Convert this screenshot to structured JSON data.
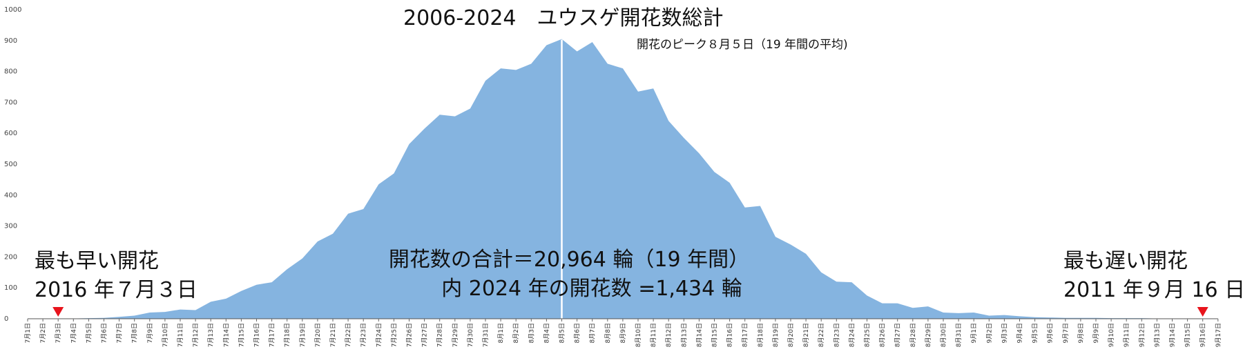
{
  "chart_data": {
    "type": "area",
    "title": "2006-2024　ユウスゲ開花数総計",
    "peak_note": "開花のピーク８月５日（19 年間の平均)",
    "ylim": [
      0,
      1000
    ],
    "yticks": [
      0,
      100,
      200,
      300,
      400,
      500,
      600,
      700,
      800,
      900,
      1000
    ],
    "grid": false,
    "fill_color": "#85b4e0",
    "peak_line_color": "#ffffff",
    "marker_color": "#e8141c",
    "x_labels": [
      "7月1日",
      "7月2日",
      "7月3日",
      "7月4日",
      "7月5日",
      "7月6日",
      "7月7日",
      "7月8日",
      "7月9日",
      "7月10日",
      "7月11日",
      "7月12日",
      "7月13日",
      "7月14日",
      "7月15日",
      "7月16日",
      "7月17日",
      "7月18日",
      "7月19日",
      "7月20日",
      "7月21日",
      "7月22日",
      "7月23日",
      "7月24日",
      "7月25日",
      "7月26日",
      "7月27日",
      "7月28日",
      "7月29日",
      "7月30日",
      "7月31日",
      "8月1日",
      "8月2日",
      "8月3日",
      "8月4日",
      "8月5日",
      "8月6日",
      "8月7日",
      "8月8日",
      "8月9日",
      "8月10日",
      "8月11日",
      "8月12日",
      "8月13日",
      "8月14日",
      "8月15日",
      "8月16日",
      "8月17日",
      "8月18日",
      "8月19日",
      "8月20日",
      "8月21日",
      "8月22日",
      "8月23日",
      "8月24日",
      "8月25日",
      "8月26日",
      "8月27日",
      "8月28日",
      "8月29日",
      "8月30日",
      "8月31日",
      "9月1日",
      "9月2日",
      "9月3日",
      "9月4日",
      "9月5日",
      "9月6日",
      "9月7日",
      "9月8日",
      "9月9日",
      "9月10日",
      "9月11日",
      "9月12日",
      "9月13日",
      "9月14日",
      "9月15日",
      "9月16日",
      "9月17日"
    ],
    "values": [
      0,
      0,
      1,
      1,
      2,
      3,
      6,
      10,
      20,
      22,
      30,
      28,
      55,
      65,
      90,
      110,
      118,
      160,
      195,
      250,
      275,
      340,
      355,
      435,
      470,
      565,
      615,
      660,
      655,
      680,
      770,
      810,
      805,
      825,
      885,
      905,
      865,
      895,
      825,
      810,
      735,
      745,
      640,
      585,
      535,
      475,
      440,
      360,
      365,
      265,
      240,
      210,
      150,
      120,
      118,
      75,
      50,
      50,
      35,
      40,
      20,
      18,
      20,
      10,
      12,
      8,
      5,
      4,
      3,
      3,
      3,
      2,
      2,
      2,
      1,
      1,
      1,
      1,
      0
    ],
    "peak_label": "8月5日",
    "earliest": {
      "label_line1": "最も早い開花",
      "label_line2": "2016 年７月３日",
      "x": "7月3日"
    },
    "latest": {
      "label_line1": "最も遅い開花",
      "label_line2": "2011 年９月 16 日",
      "x": "9月16日"
    },
    "annotation_line1": "開花数の合計＝20,964 輪（19 年間）",
    "annotation_line2": "内 2024 年の開花数 =1,434 輪"
  }
}
